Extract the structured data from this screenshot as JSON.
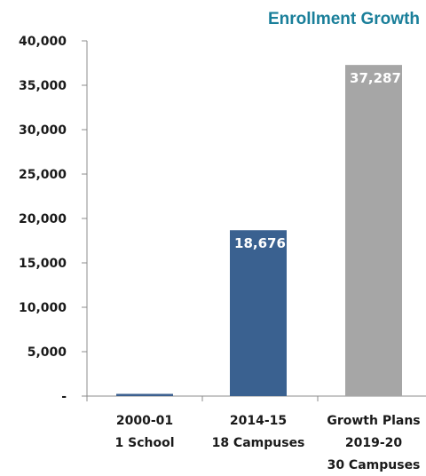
{
  "chart_data": {
    "type": "bar",
    "title": "Enrollment Growth",
    "title_color": "#1a7f9a",
    "categories": [
      [
        "2000-01",
        "1 School"
      ],
      [
        "2014-15",
        "18 Campuses"
      ],
      [
        "Growth Plans",
        "2019-20",
        "30 Campuses"
      ]
    ],
    "values": [
      250,
      18676,
      37287
    ],
    "value_labels": [
      "",
      "18,676",
      "37,287"
    ],
    "bar_colors": [
      "#3c6090",
      "#3a6190",
      "#a6a6a6"
    ],
    "ylim": [
      0,
      40000
    ],
    "yticks": [
      0,
      5000,
      10000,
      15000,
      20000,
      25000,
      30000,
      35000,
      40000
    ],
    "ytick_labels": [
      "-",
      "5,000",
      "10,000",
      "15,000",
      "20,000",
      "25,000",
      "30,000",
      "35,000",
      "40,000"
    ],
    "grid": false,
    "legend": "none"
  }
}
